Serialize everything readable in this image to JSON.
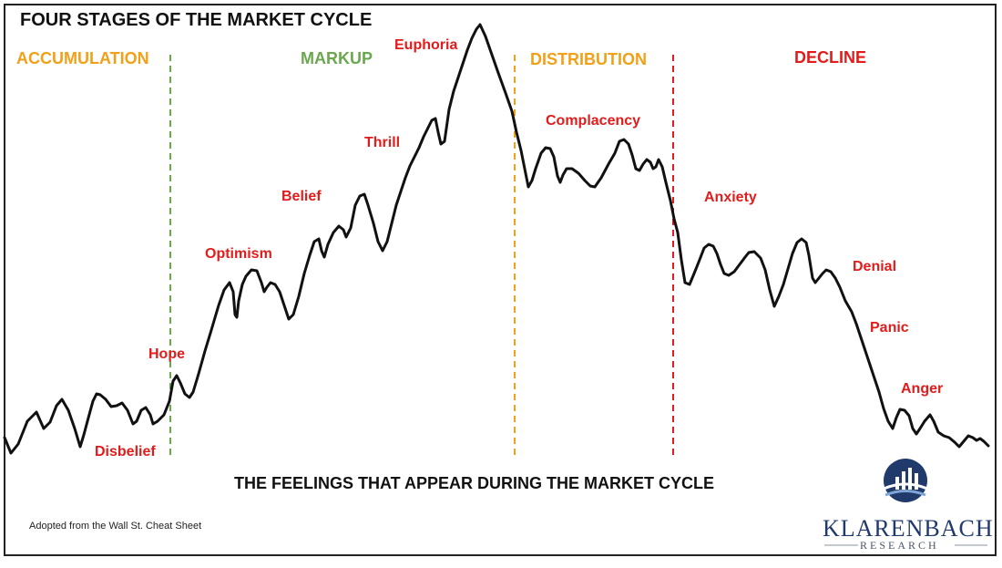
{
  "title": "FOUR STAGES OF THE MARKET CYCLE",
  "stages": [
    {
      "label": "ACCUMULATION",
      "color": "#f2a018"
    },
    {
      "label": "MARKUP",
      "color": "#6aa84f"
    },
    {
      "label": "DISTRIBUTION",
      "color": "#f2a018"
    },
    {
      "label": "DECLINE",
      "color": "#e21b1b"
    }
  ],
  "dividers": [
    {
      "color": "#6aa84f"
    },
    {
      "color": "#f2a018"
    },
    {
      "color": "#e21b1b"
    }
  ],
  "emotions": {
    "disbelief": "Disbelief",
    "hope": "Hope",
    "optimism": "Optimism",
    "belief": "Belief",
    "thrill": "Thrill",
    "euphoria": "Euphoria",
    "complacency": "Complacency",
    "anxiety": "Anxiety",
    "denial": "Denial",
    "panic": "Panic",
    "anger": "Anger"
  },
  "subtitle": "THE FEELINGS THAT APPEAR DURING THE MARKET CYCLE",
  "credit": "Adopted from the Wall St. Cheat Sheet",
  "brand": {
    "name": "KLARENBACH",
    "sub": "RESEARCH",
    "color": "#1f3a6b"
  },
  "line_color": "#111111"
}
